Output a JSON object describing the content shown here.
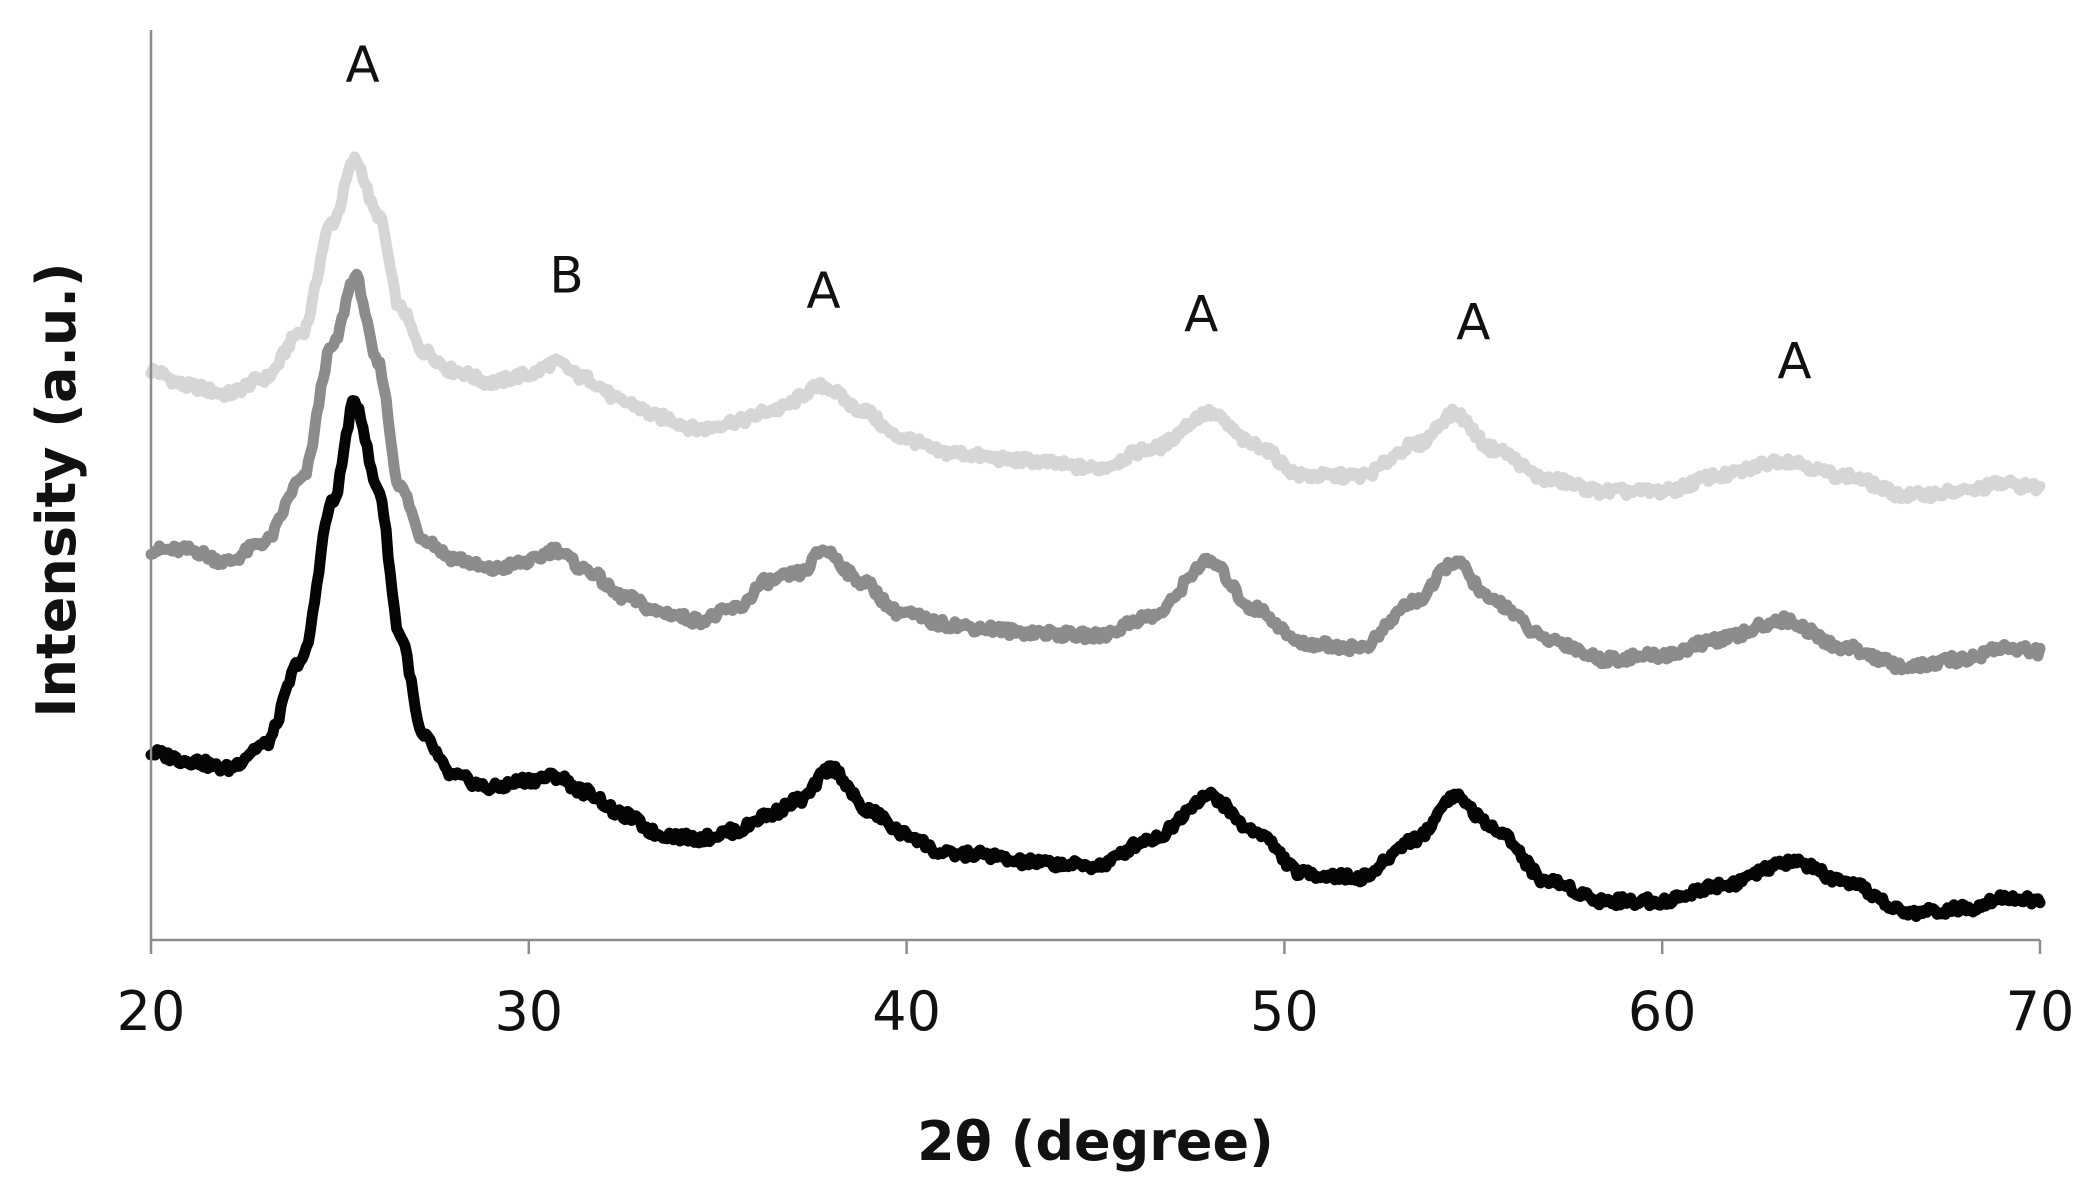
{
  "chart_data": {
    "type": "line",
    "title": "",
    "xlabel": "2θ (degree)",
    "ylabel": "Intensity (a.u.)",
    "xlim": [
      20,
      70
    ],
    "ylim": [
      0,
      10
    ],
    "x_ticks": [
      20,
      30,
      40,
      50,
      60,
      70
    ],
    "y_ticks_visible": false,
    "grid": false,
    "legend": "none",
    "series": [
      {
        "color": "#d6d6d6",
        "points": [
          [
            20,
            7.3
          ],
          [
            21,
            7.1
          ],
          [
            22,
            7.0
          ],
          [
            23,
            7.2
          ],
          [
            24,
            7.8
          ],
          [
            24.8,
            9.2
          ],
          [
            25.4,
            10.0
          ],
          [
            26,
            9.3
          ],
          [
            26.6,
            8.1
          ],
          [
            27.2,
            7.55
          ],
          [
            28,
            7.3
          ],
          [
            29,
            7.15
          ],
          [
            30,
            7.25
          ],
          [
            30.7,
            7.4
          ],
          [
            31.5,
            7.2
          ],
          [
            32.5,
            6.9
          ],
          [
            33.5,
            6.7
          ],
          [
            34.5,
            6.55
          ],
          [
            35.5,
            6.65
          ],
          [
            36.5,
            6.8
          ],
          [
            37.8,
            7.1
          ],
          [
            38.8,
            6.8
          ],
          [
            39.8,
            6.45
          ],
          [
            41,
            6.25
          ],
          [
            43,
            6.15
          ],
          [
            45,
            6.05
          ],
          [
            46.5,
            6.3
          ],
          [
            48,
            6.75
          ],
          [
            49.2,
            6.35
          ],
          [
            50.5,
            5.95
          ],
          [
            52,
            5.95
          ],
          [
            53.5,
            6.35
          ],
          [
            54.5,
            6.75
          ],
          [
            55.5,
            6.3
          ],
          [
            57,
            5.9
          ],
          [
            58.5,
            5.75
          ],
          [
            60,
            5.75
          ],
          [
            61.5,
            5.95
          ],
          [
            63.2,
            6.15
          ],
          [
            64.8,
            5.95
          ],
          [
            66.5,
            5.7
          ],
          [
            68,
            5.75
          ],
          [
            69,
            5.85
          ],
          [
            70,
            5.8
          ]
        ]
      },
      {
        "color": "#8c8c8c",
        "points": [
          [
            20,
            5.0
          ],
          [
            21,
            5.0
          ],
          [
            22,
            4.85
          ],
          [
            23,
            5.1
          ],
          [
            24,
            5.9
          ],
          [
            24.8,
            7.6
          ],
          [
            25.4,
            8.5
          ],
          [
            26,
            7.4
          ],
          [
            26.6,
            5.8
          ],
          [
            27.2,
            5.15
          ],
          [
            28,
            4.9
          ],
          [
            29,
            4.75
          ],
          [
            30,
            4.85
          ],
          [
            30.7,
            5.0
          ],
          [
            31.5,
            4.75
          ],
          [
            32.5,
            4.4
          ],
          [
            33.5,
            4.2
          ],
          [
            34.5,
            4.1
          ],
          [
            35.5,
            4.25
          ],
          [
            36.3,
            4.6
          ],
          [
            37.2,
            4.7
          ],
          [
            37.8,
            5.0
          ],
          [
            38.8,
            4.6
          ],
          [
            39.8,
            4.2
          ],
          [
            41,
            4.05
          ],
          [
            42,
            4.0
          ],
          [
            43,
            3.95
          ],
          [
            45,
            3.9
          ],
          [
            46.5,
            4.15
          ],
          [
            48,
            4.85
          ],
          [
            49.2,
            4.25
          ],
          [
            50.5,
            3.8
          ],
          [
            52,
            3.75
          ],
          [
            53.5,
            4.35
          ],
          [
            54.5,
            4.85
          ],
          [
            55.5,
            4.35
          ],
          [
            57,
            3.85
          ],
          [
            58.5,
            3.6
          ],
          [
            60,
            3.65
          ],
          [
            61.5,
            3.85
          ],
          [
            63.2,
            4.1
          ],
          [
            64.8,
            3.75
          ],
          [
            66.5,
            3.5
          ],
          [
            68,
            3.6
          ],
          [
            69,
            3.75
          ],
          [
            70,
            3.7
          ]
        ]
      },
      {
        "color": "#050505",
        "points": [
          [
            20,
            2.4
          ],
          [
            21,
            2.3
          ],
          [
            22,
            2.2
          ],
          [
            23,
            2.5
          ],
          [
            24,
            3.6
          ],
          [
            24.8,
            5.6
          ],
          [
            25.4,
            6.9
          ],
          [
            26,
            5.8
          ],
          [
            26.6,
            3.9
          ],
          [
            27.2,
            2.6
          ],
          [
            28,
            2.1
          ],
          [
            29,
            1.95
          ],
          [
            30,
            2.05
          ],
          [
            30.7,
            2.1
          ],
          [
            31.5,
            1.9
          ],
          [
            32.5,
            1.6
          ],
          [
            33.5,
            1.35
          ],
          [
            34.5,
            1.3
          ],
          [
            35.5,
            1.4
          ],
          [
            36.3,
            1.6
          ],
          [
            37.2,
            1.8
          ],
          [
            38,
            2.2
          ],
          [
            39,
            1.65
          ],
          [
            40,
            1.35
          ],
          [
            41,
            1.1
          ],
          [
            42,
            1.1
          ],
          [
            43,
            1.0
          ],
          [
            45,
            0.95
          ],
          [
            46.5,
            1.3
          ],
          [
            48,
            1.85
          ],
          [
            49.2,
            1.4
          ],
          [
            50.5,
            0.85
          ],
          [
            52,
            0.8
          ],
          [
            53.5,
            1.3
          ],
          [
            54.5,
            1.85
          ],
          [
            55.5,
            1.45
          ],
          [
            57,
            0.75
          ],
          [
            58.5,
            0.5
          ],
          [
            60,
            0.5
          ],
          [
            61.5,
            0.7
          ],
          [
            63.5,
            1.0
          ],
          [
            65,
            0.7
          ],
          [
            66.5,
            0.35
          ],
          [
            68,
            0.4
          ],
          [
            69,
            0.55
          ],
          [
            70,
            0.5
          ]
        ]
      }
    ],
    "annotations": [
      {
        "text": "A",
        "x": 25.6,
        "y": 11.0
      },
      {
        "text": "B",
        "x": 31.0,
        "y": 8.3
      },
      {
        "text": "A",
        "x": 37.8,
        "y": 8.1
      },
      {
        "text": "A",
        "x": 47.8,
        "y": 7.8
      },
      {
        "text": "A",
        "x": 55.0,
        "y": 7.7
      },
      {
        "text": "A",
        "x": 63.5,
        "y": 7.2
      }
    ]
  }
}
